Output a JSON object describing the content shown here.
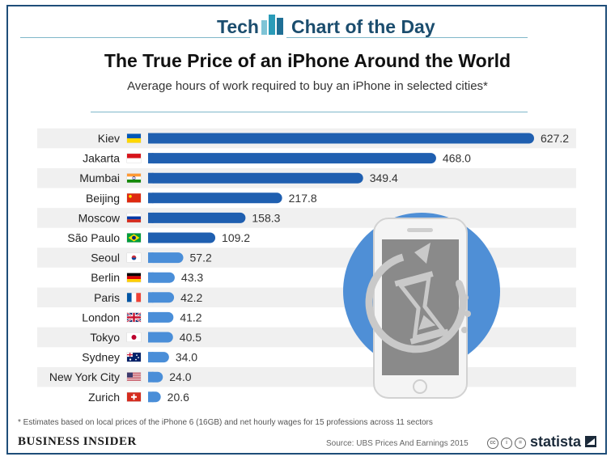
{
  "header": {
    "brand_left": "Tech",
    "brand_right": "Chart of the Day"
  },
  "title": "The True Price of an iPhone Around the World",
  "subtitle": "Average hours of work required to buy an iPhone in selected cities*",
  "footnote": "* Estimates based on local prices of the iPhone 6 (16GB) and net hourly wages for 15 professions across 11 sectors",
  "footer": {
    "publisher": "BUSINESS INSIDER",
    "source": "Source: UBS Prices And Earnings 2015",
    "license_icons": [
      "cc",
      "i",
      "="
    ],
    "brand": "statista"
  },
  "colors": {
    "bar": "#1f5fb0",
    "bar_light": "#4a8ed8",
    "stripe": "#f0f0f0",
    "brand": "#1b4d6e"
  },
  "chart_data": {
    "type": "bar",
    "orientation": "horizontal",
    "title": "The True Price of an iPhone Around the World",
    "subtitle": "Average hours of work required to buy an iPhone in selected cities*",
    "categories": [
      "Kiev",
      "Jakarta",
      "Mumbai",
      "Beijing",
      "Moscow",
      "São Paulo",
      "Seoul",
      "Berlin",
      "Paris",
      "London",
      "Tokyo",
      "Sydney",
      "New York City",
      "Zurich"
    ],
    "values": [
      627.2,
      468.0,
      349.4,
      217.8,
      158.3,
      109.2,
      57.2,
      43.3,
      42.2,
      41.2,
      40.5,
      34.0,
      24.0,
      20.6
    ],
    "value_labels": [
      "627.2",
      "468.0",
      "349.4",
      "217.8",
      "158.3",
      "109.2",
      "57.2",
      "43.3",
      "42.2",
      "41.2",
      "40.5",
      "34.0",
      "24.0",
      "20.6"
    ],
    "flags": [
      "ukraine-flag-icon",
      "indonesia-flag-icon",
      "india-flag-icon",
      "china-flag-icon",
      "russia-flag-icon",
      "brazil-flag-icon",
      "south-korea-flag-icon",
      "germany-flag-icon",
      "france-flag-icon",
      "uk-flag-icon",
      "japan-flag-icon",
      "australia-flag-icon",
      "usa-flag-icon",
      "switzerland-flag-icon"
    ],
    "xlabel": "",
    "ylabel": "",
    "xlim": [
      0,
      627.2
    ],
    "grid": false,
    "legend": "none"
  }
}
